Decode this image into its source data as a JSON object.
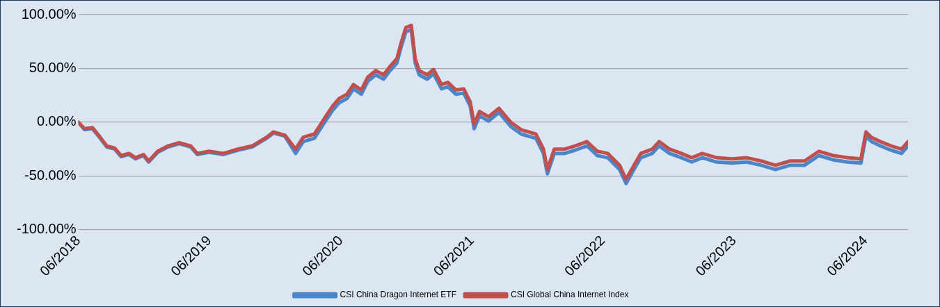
{
  "chart_data": {
    "type": "line",
    "x": [
      "2018-06-01",
      "2018-06-18",
      "2018-07-10",
      "2018-08-01",
      "2018-08-19",
      "2018-09-10",
      "2018-09-28",
      "2018-10-20",
      "2018-11-07",
      "2018-11-29",
      "2018-12-14",
      "2019-01-08",
      "2019-02-06",
      "2019-03-08",
      "2019-04-10",
      "2019-04-28",
      "2019-05-31",
      "2019-07-10",
      "2019-08-19",
      "2019-09-28",
      "2019-11-07",
      "2019-11-26",
      "2019-12-28",
      "2020-01-27",
      "2020-02-17",
      "2020-03-19",
      "2020-04-17",
      "2020-05-09",
      "2020-05-27",
      "2020-06-18",
      "2020-07-06",
      "2020-07-28",
      "2020-08-15",
      "2020-09-06",
      "2020-09-28",
      "2020-10-16",
      "2020-11-04",
      "2020-11-15",
      "2020-11-29",
      "2020-12-14",
      "2020-12-25",
      "2021-01-05",
      "2021-01-27",
      "2021-02-14",
      "2021-03-08",
      "2021-03-26",
      "2021-04-17",
      "2021-05-09",
      "2021-05-27",
      "2021-06-07",
      "2021-06-22",
      "2021-07-17",
      "2021-08-15",
      "2021-09-17",
      "2021-10-16",
      "2021-11-26",
      "2021-12-17",
      "2021-12-28",
      "2022-01-16",
      "2022-02-14",
      "2022-03-15",
      "2022-04-17",
      "2022-05-16",
      "2022-06-14",
      "2022-07-17",
      "2022-08-04",
      "2022-08-26",
      "2022-09-14",
      "2022-10-16",
      "2022-11-04",
      "2022-12-03",
      "2023-01-05",
      "2023-02-03",
      "2023-03-04",
      "2023-04-13",
      "2023-05-27",
      "2023-07-06",
      "2023-08-15",
      "2023-09-24",
      "2023-11-04",
      "2023-12-14",
      "2024-01-23",
      "2024-03-03",
      "2024-04-12",
      "2024-05-19",
      "2024-06-02",
      "2024-06-17",
      "2024-07-12",
      "2024-08-11",
      "2024-09-09",
      "2024-09-27"
    ],
    "series": [
      {
        "name": "CSI China Dragon Internet ETF",
        "color": "#4a86c8",
        "values": [
          0,
          -7,
          -6,
          -15,
          -23,
          -25,
          -32,
          -30,
          -34,
          -31,
          -37,
          -28,
          -23,
          -20,
          -23,
          -30,
          -28,
          -30,
          -26,
          -23,
          -15,
          -10,
          -13,
          -29,
          -18,
          -15,
          0,
          11,
          18,
          22,
          31,
          26,
          38,
          44,
          40,
          48,
          55,
          69,
          84,
          86,
          55,
          44,
          40,
          45,
          31,
          33,
          26,
          27,
          15,
          -6,
          6,
          1,
          9,
          -4,
          -11,
          -15,
          -29,
          -48,
          -29,
          -29,
          -26,
          -22,
          -31,
          -33,
          -44,
          -57,
          -44,
          -33,
          -29,
          -22,
          -29,
          -33,
          -37,
          -33,
          -37,
          -38,
          -37,
          -40,
          -44,
          -40,
          -40,
          -31,
          -35,
          -37,
          -38,
          -13,
          -18,
          -22,
          -26,
          -29,
          -22
        ]
      },
      {
        "name": "CSI Global China Internet Index",
        "color": "#c0504d",
        "values": [
          0,
          -6,
          -5,
          -14,
          -22,
          -24,
          -31,
          -29,
          -33,
          -30,
          -36,
          -27,
          -22,
          -19,
          -22,
          -29,
          -27,
          -29,
          -25,
          -22,
          -14,
          -9,
          -12,
          -25,
          -14,
          -11,
          4,
          15,
          22,
          26,
          35,
          30,
          42,
          48,
          44,
          52,
          59,
          73,
          88,
          90,
          59,
          48,
          44,
          49,
          35,
          37,
          30,
          31,
          19,
          -2,
          10,
          5,
          13,
          0,
          -7,
          -11,
          -25,
          -44,
          -25,
          -25,
          -22,
          -18,
          -27,
          -29,
          -40,
          -53,
          -40,
          -29,
          -25,
          -18,
          -25,
          -29,
          -33,
          -29,
          -33,
          -34,
          -33,
          -36,
          -40,
          -36,
          -36,
          -27,
          -31,
          -33,
          -34,
          -9,
          -14,
          -18,
          -22,
          -25,
          -18
        ]
      }
    ],
    "xlim": [
      "2018-06-01",
      "2024-09-27"
    ],
    "xticks": [
      {
        "value": "2018-06-01",
        "label": "06/2018"
      },
      {
        "value": "2019-06-01",
        "label": "06/2019"
      },
      {
        "value": "2020-06-01",
        "label": "06/2020"
      },
      {
        "value": "2021-06-01",
        "label": "06/2021"
      },
      {
        "value": "2022-06-01",
        "label": "06/2022"
      },
      {
        "value": "2023-06-01",
        "label": "06/2023"
      },
      {
        "value": "2024-06-01",
        "label": "06/2024"
      }
    ],
    "ylim": [
      -100,
      100
    ],
    "yticks": [
      {
        "value": -100,
        "label": "-100.00%"
      },
      {
        "value": -50,
        "label": "-50.00%"
      },
      {
        "value": 0,
        "label": "0.00%"
      },
      {
        "value": 50,
        "label": "50.00%"
      },
      {
        "value": 100,
        "label": "100.00%"
      }
    ],
    "grid": "y",
    "legend": "bottom",
    "marker": "none",
    "line_style": "solid"
  }
}
